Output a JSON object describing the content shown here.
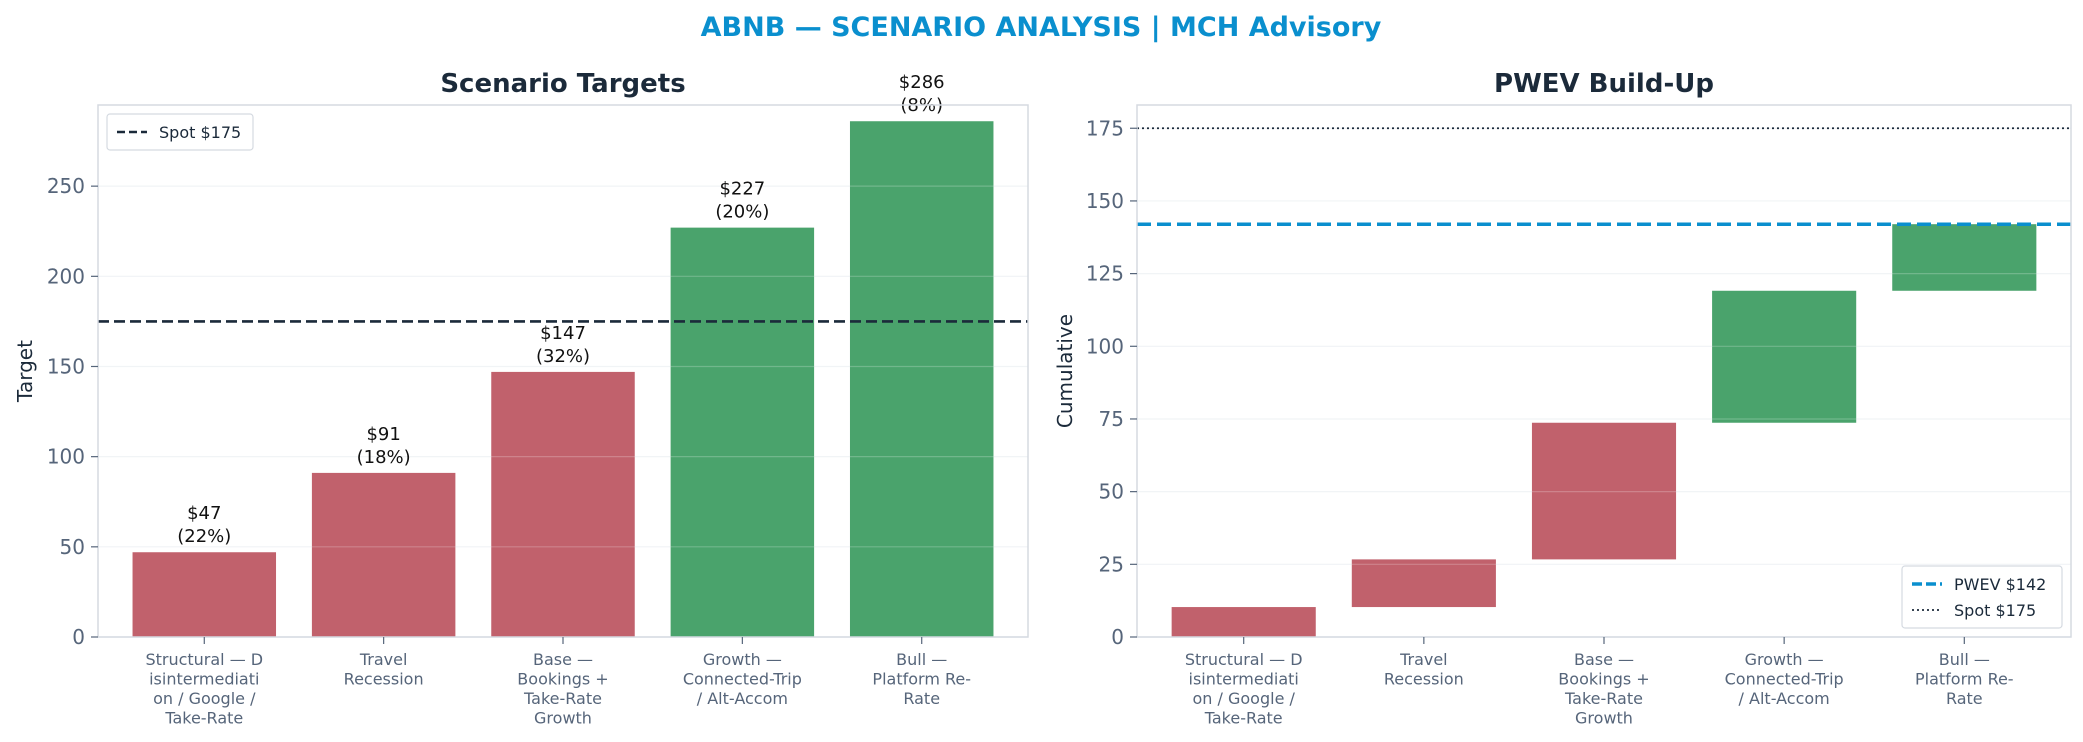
{
  "suptitle": "ABNB — SCENARIO ANALYSIS | MCH Advisory",
  "colors": {
    "accent": "#0a8fce",
    "negative": "#c1616c",
    "positive": "#4aa36c",
    "spot_line": "#1b2a3a",
    "frame": "#d5dae1",
    "grid": "#eef1f4",
    "text": "#1b2a3a",
    "tick": "#56657a"
  },
  "chart_data": [
    {
      "type": "bar",
      "title": "Scenario Targets",
      "xlabel": "",
      "ylabel": "Target",
      "ylim": [
        0,
        295
      ],
      "yticks": [
        0,
        50,
        100,
        150,
        200,
        250
      ],
      "categories": [
        [
          "Structural — D",
          "isintermediati",
          "on / Google /",
          "Take-Rate"
        ],
        [
          "Travel",
          "Recession"
        ],
        [
          "Base —",
          "Bookings +",
          "Take-Rate",
          "Growth"
        ],
        [
          "Growth —",
          "Connected-Trip",
          "/ Alt-Accom"
        ],
        [
          "Bull —",
          "Platform Re-",
          "Rate"
        ]
      ],
      "values": [
        47,
        91,
        147,
        227,
        286
      ],
      "colors": [
        "#c1616c",
        "#c1616c",
        "#c1616c",
        "#4aa36c",
        "#4aa36c"
      ],
      "data_labels": [
        [
          "$47",
          "(22%)"
        ],
        [
          "$91",
          "(18%)"
        ],
        [
          "$147",
          "(32%)"
        ],
        [
          "$227",
          "(20%)"
        ],
        [
          "$286",
          "(8%)"
        ]
      ],
      "reference_lines": [
        {
          "value": 175,
          "label": "Spot $175",
          "style": "dashed",
          "color": "#1b2a3a"
        }
      ],
      "legend": {
        "placement": "top-left",
        "entries": [
          "Spot $175"
        ]
      },
      "grid": true
    },
    {
      "type": "bar",
      "subtype": "waterfall",
      "title": "PWEV Build-Up",
      "xlabel": "",
      "ylabel": "Cumulative",
      "ylim": [
        0,
        183
      ],
      "yticks": [
        0,
        25,
        50,
        75,
        100,
        125,
        150,
        175
      ],
      "categories": [
        [
          "Structural — D",
          "isintermediati",
          "on / Google /",
          "Take-Rate"
        ],
        [
          "Travel",
          "Recession"
        ],
        [
          "Base —",
          "Bookings +",
          "Take-Rate",
          "Growth"
        ],
        [
          "Growth —",
          "Connected-Trip",
          "/ Alt-Accom"
        ],
        [
          "Bull —",
          "Platform Re-",
          "Rate"
        ]
      ],
      "bottoms": [
        0,
        10.3,
        26.7,
        73.7,
        119.1
      ],
      "tops": [
        10.3,
        26.7,
        73.7,
        119.1,
        142
      ],
      "colors": [
        "#c1616c",
        "#c1616c",
        "#c1616c",
        "#4aa36c",
        "#4aa36c"
      ],
      "reference_lines": [
        {
          "value": 142,
          "label": "PWEV $142",
          "style": "dashed",
          "color": "#0a8fce"
        },
        {
          "value": 175,
          "label": "Spot $175",
          "style": "dotted",
          "color": "#1b2a3a"
        }
      ],
      "legend": {
        "placement": "bottom-right",
        "entries": [
          "PWEV $142",
          "Spot $175"
        ]
      },
      "grid": true
    }
  ]
}
